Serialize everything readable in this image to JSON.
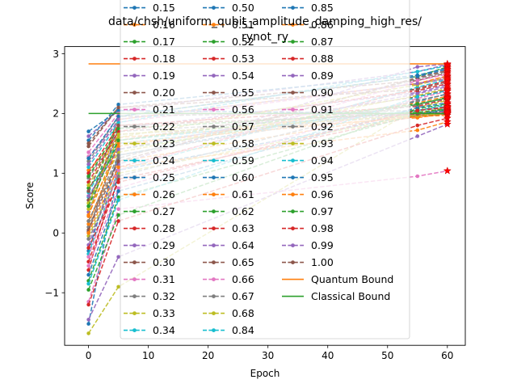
{
  "chart_data": {
    "type": "line",
    "title": "data/chsh/uniform_qubit_amplitude_damping_high_res/\nrynot_ry",
    "xlabel": "Epoch",
    "ylabel": "Score",
    "xlim": [
      -4,
      63
    ],
    "ylim": [
      -1.88,
      3.12
    ],
    "xticks": [
      0,
      10,
      20,
      30,
      40,
      50,
      60
    ],
    "yticks": [
      -1,
      0,
      1,
      2,
      3
    ],
    "grid": false,
    "legend_position": "center (overlapping plot)",
    "series_colors": [
      "#1f77b4",
      "#ff7f0e",
      "#2ca02c",
      "#d62728",
      "#9467bd",
      "#8c564b",
      "#e377c2",
      "#7f7f7f",
      "#bcbd22",
      "#17becf"
    ],
    "series_names": [
      "0.15",
      "0.16",
      "0.17",
      "0.18",
      "0.19",
      "0.20",
      "0.21",
      "0.22",
      "0.23",
      "0.24",
      "0.25",
      "0.26",
      "0.27",
      "0.28",
      "0.29",
      "0.30",
      "0.31",
      "0.32",
      "0.33",
      "0.34",
      "0.50",
      "0.51",
      "0.52",
      "0.53",
      "0.54",
      "0.55",
      "0.56",
      "0.57",
      "0.58",
      "0.59",
      "0.60",
      "0.61",
      "0.62",
      "0.63",
      "0.64",
      "0.65",
      "0.66",
      "0.67",
      "0.68",
      "0.84",
      "0.85",
      "0.86",
      "0.87",
      "0.88",
      "0.89",
      "0.90",
      "0.91",
      "0.92",
      "0.93",
      "0.94",
      "0.95",
      "0.96",
      "0.97",
      "0.98",
      "0.99",
      "1.00"
    ],
    "series_x": [
      0,
      5,
      55,
      60
    ],
    "series_values": [
      [
        -1.52,
        1.05,
        1.98,
        2.08
      ],
      [
        0.2,
        1.2,
        2.0,
        2.1
      ],
      [
        0.45,
        1.95,
        2.62,
        2.78
      ],
      [
        -0.62,
        1.1,
        2.42,
        2.55
      ],
      [
        1.62,
        2.05,
        2.7,
        2.82
      ],
      [
        0.02,
        1.55,
        2.28,
        2.4
      ],
      [
        1.28,
        1.85,
        2.5,
        2.62
      ],
      [
        0.92,
        1.7,
        1.98,
        2.05
      ],
      [
        -1.68,
        -0.9,
        2.1,
        2.22
      ],
      [
        0.6,
        1.5,
        2.05,
        2.15
      ],
      [
        -0.3,
        1.3,
        2.2,
        2.33
      ],
      [
        1.05,
        1.6,
        1.93,
        2.0
      ],
      [
        0.75,
        1.4,
        2.15,
        2.27
      ],
      [
        -0.48,
        0.9,
        1.96,
        2.02
      ],
      [
        0.35,
        1.75,
        2.35,
        2.48
      ],
      [
        1.45,
        2.1,
        2.55,
        2.68
      ],
      [
        -1.15,
        0.4,
        0.95,
        1.04
      ],
      [
        0.1,
        1.25,
        2.58,
        2.7
      ],
      [
        -0.05,
        1.0,
        1.97,
        2.01
      ],
      [
        0.68,
        1.55,
        2.05,
        2.12
      ],
      [
        1.55,
        2.15,
        2.64,
        2.76
      ],
      [
        0.28,
        1.9,
        2.5,
        2.63
      ],
      [
        -0.8,
        0.6,
        1.99,
        2.06
      ],
      [
        1.0,
        1.8,
        2.12,
        2.24
      ],
      [
        -0.2,
        1.15,
        2.78,
        2.83
      ],
      [
        0.55,
        1.65,
        1.96,
        1.99
      ],
      [
        -0.55,
        0.75,
        2.25,
        2.37
      ],
      [
        1.2,
        1.95,
        2.05,
        2.1
      ],
      [
        0.4,
        1.35,
        2.3,
        2.42
      ],
      [
        -0.35,
        1.05,
        2.44,
        2.57
      ],
      [
        1.7,
        2.05,
        2.0,
        2.04
      ],
      [
        0.15,
        1.45,
        2.18,
        2.29
      ],
      [
        -0.95,
        0.3,
        2.08,
        2.16
      ],
      [
        0.85,
        1.7,
        2.38,
        2.5
      ],
      [
        -1.45,
        -0.4,
        1.62,
        1.82
      ],
      [
        0.05,
        1.2,
        2.6,
        2.72
      ],
      [
        1.35,
        2.0,
        1.98,
        2.03
      ],
      [
        -0.1,
        0.95,
        2.22,
        2.32
      ],
      [
        0.5,
        1.6,
        2.48,
        2.6
      ],
      [
        1.1,
        1.85,
        2.7,
        2.8
      ],
      [
        -0.7,
        0.7,
        2.1,
        2.18
      ],
      [
        0.3,
        1.5,
        1.95,
        1.97
      ],
      [
        0.95,
        1.75,
        2.02,
        2.08
      ],
      [
        -1.2,
        0.2,
        1.8,
        1.92
      ],
      [
        0.62,
        1.4,
        2.33,
        2.45
      ],
      [
        1.5,
        2.1,
        2.4,
        2.53
      ],
      [
        -0.4,
        1.05,
        2.55,
        2.66
      ],
      [
        0.2,
        1.3,
        2.14,
        2.25
      ],
      [
        0.8,
        1.65,
        1.97,
        2.0
      ],
      [
        -0.85,
        0.55,
        2.28,
        2.38
      ],
      [
        1.25,
        1.95,
        2.62,
        2.74
      ],
      [
        0.0,
        1.1,
        1.72,
        1.86
      ],
      [
        0.45,
        1.55,
        2.16,
        2.26
      ],
      [
        -0.25,
        0.85,
        2.05,
        2.11
      ],
      [
        1.15,
        1.9,
        2.5,
        2.58
      ],
      [
        0.7,
        1.8,
        1.99,
        2.02
      ]
    ],
    "bounds": [
      {
        "name": "Quantum Bound",
        "value": 2.83,
        "color": "#ff7f0e"
      },
      {
        "name": "Classical Bound",
        "value": 2.0,
        "color": "#2ca02c"
      }
    ],
    "final_marker": "red star at epoch 60"
  }
}
